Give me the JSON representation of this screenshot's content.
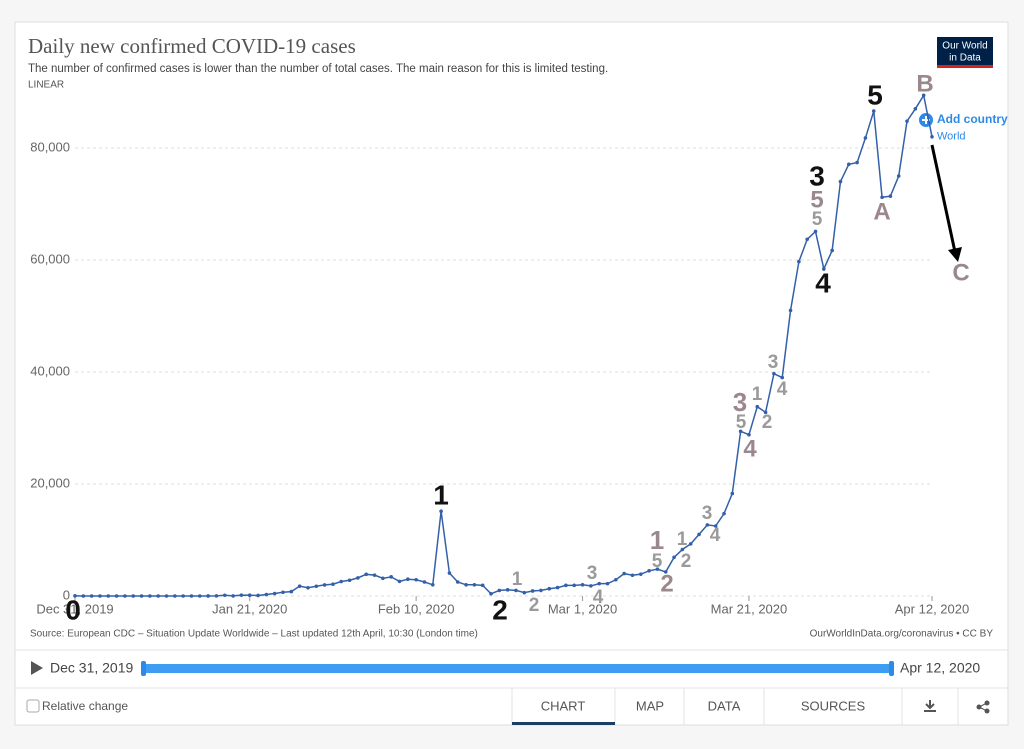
{
  "chart_data": {
    "type": "line",
    "title": "Daily new confirmed COVID-19 cases",
    "subtitle": "The number of confirmed cases is lower than the number of total cases. The main reason for this is limited testing.",
    "scale_label": "LINEAR",
    "x": [
      "2019-12-31",
      "2020-01-01",
      "2020-01-02",
      "2020-01-03",
      "2020-01-04",
      "2020-01-05",
      "2020-01-06",
      "2020-01-07",
      "2020-01-08",
      "2020-01-09",
      "2020-01-10",
      "2020-01-11",
      "2020-01-12",
      "2020-01-13",
      "2020-01-14",
      "2020-01-15",
      "2020-01-16",
      "2020-01-17",
      "2020-01-18",
      "2020-01-19",
      "2020-01-20",
      "2020-01-21",
      "2020-01-22",
      "2020-01-23",
      "2020-01-24",
      "2020-01-25",
      "2020-01-26",
      "2020-01-27",
      "2020-01-28",
      "2020-01-29",
      "2020-01-30",
      "2020-01-31",
      "2020-02-01",
      "2020-02-02",
      "2020-02-03",
      "2020-02-04",
      "2020-02-05",
      "2020-02-06",
      "2020-02-07",
      "2020-02-08",
      "2020-02-09",
      "2020-02-10",
      "2020-02-11",
      "2020-02-12",
      "2020-02-13",
      "2020-02-14",
      "2020-02-15",
      "2020-02-16",
      "2020-02-17",
      "2020-02-18",
      "2020-02-19",
      "2020-02-20",
      "2020-02-21",
      "2020-02-22",
      "2020-02-23",
      "2020-02-24",
      "2020-02-25",
      "2020-02-26",
      "2020-02-27",
      "2020-02-28",
      "2020-02-29",
      "2020-03-01",
      "2020-03-02",
      "2020-03-03",
      "2020-03-04",
      "2020-03-05",
      "2020-03-06",
      "2020-03-07",
      "2020-03-08",
      "2020-03-09",
      "2020-03-10",
      "2020-03-11",
      "2020-03-12",
      "2020-03-13",
      "2020-03-14",
      "2020-03-15",
      "2020-03-16",
      "2020-03-17",
      "2020-03-18",
      "2020-03-19",
      "2020-03-20",
      "2020-03-21",
      "2020-03-22",
      "2020-03-23",
      "2020-03-24",
      "2020-03-25",
      "2020-03-26",
      "2020-03-27",
      "2020-03-28",
      "2020-03-29",
      "2020-03-30",
      "2020-03-31",
      "2020-04-01",
      "2020-04-02",
      "2020-04-03",
      "2020-04-04",
      "2020-04-05",
      "2020-04-06",
      "2020-04-07",
      "2020-04-08",
      "2020-04-09",
      "2020-04-10",
      "2020-04-11",
      "2020-04-12"
    ],
    "series": [
      {
        "name": "World",
        "color": "#3360a9",
        "values": [
          27,
          0,
          0,
          0,
          0,
          0,
          0,
          0,
          0,
          0,
          0,
          0,
          1,
          0,
          1,
          0,
          4,
          17,
          136,
          19,
          151,
          140,
          97,
          259,
          441,
          665,
          787,
          1753,
          1466,
          1740,
          1980,
          2102,
          2590,
          2812,
          3237,
          3872,
          3727,
          3160,
          3418,
          2607,
          3000,
          2900,
          2500,
          2000,
          15141,
          4100,
          2500,
          2000,
          2000,
          1900,
          400,
          1000,
          1100,
          1000,
          600,
          900,
          1000,
          1300,
          1500,
          1900,
          1900,
          2000,
          1800,
          2200,
          2200,
          2900,
          4000,
          3700,
          3900,
          4500,
          4800,
          4300,
          6900,
          8300,
          9300,
          11000,
          12700,
          12500,
          14700,
          18300,
          29400,
          28800,
          33800,
          32800,
          39700,
          39000,
          51000,
          59700,
          63700,
          65100,
          58400,
          61700,
          74000,
          77100,
          77400,
          81800,
          86600,
          71200,
          71400,
          75000,
          84800,
          87000,
          89400,
          82000
        ]
      }
    ],
    "xlim": [
      "2019-12-31",
      "2020-04-12"
    ],
    "xticks": [
      {
        "value": "2019-12-31",
        "label": "Dec 31, 2019"
      },
      {
        "value": "2020-01-21",
        "label": "Jan 21, 2020"
      },
      {
        "value": "2020-02-10",
        "label": "Feb 10, 2020"
      },
      {
        "value": "2020-03-01",
        "label": "Mar 1, 2020"
      },
      {
        "value": "2020-03-21",
        "label": "Mar 21, 2020"
      },
      {
        "value": "2020-04-12",
        "label": "Apr 12, 2020"
      }
    ],
    "ylim": [
      0,
      90000
    ],
    "yticks": [
      0,
      {
        "value": 20000,
        "label": "20,000"
      },
      {
        "value": 40000,
        "label": "40,000"
      },
      {
        "value": 60000,
        "label": "60,000"
      },
      {
        "value": 80000,
        "label": "80,000"
      }
    ],
    "grid": true,
    "annotations": [
      "0",
      "1",
      "2",
      "1",
      "2",
      "3",
      "4",
      "1",
      "5",
      "2",
      "1",
      "2",
      "3",
      "4",
      "3",
      "5",
      "4",
      "1",
      "2",
      "3",
      "4",
      "3",
      "5",
      "5",
      "4",
      "5",
      "A",
      "B",
      "C"
    ]
  },
  "ui": {
    "logo": [
      "Our World",
      "in Data"
    ],
    "add_country": "Add country",
    "source": "Source: European CDC – Situation Update Worldwide – Last updated 12th April, 10:30 (London time)",
    "credit": "OurWorldInData.org/coronavirus • CC BY",
    "timeline": {
      "start": "Dec 31, 2019",
      "end": "Apr 12, 2020"
    },
    "relative_change": "Relative change",
    "tabs": [
      "CHART",
      "MAP",
      "DATA",
      "SOURCES"
    ]
  }
}
